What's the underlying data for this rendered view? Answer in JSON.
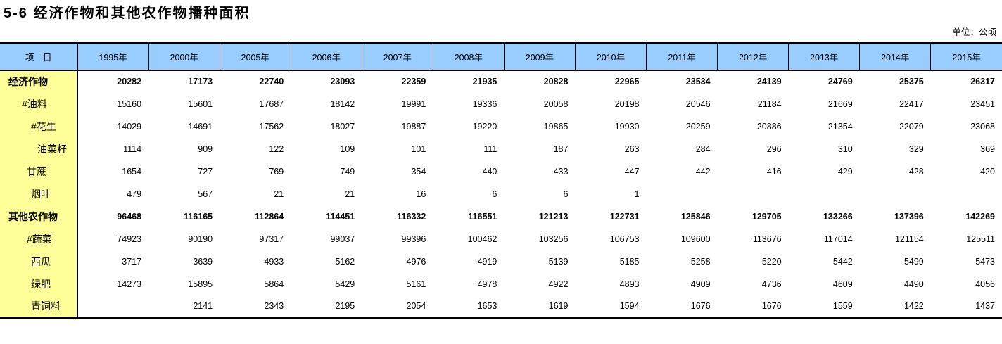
{
  "page": {
    "title": "5-6 经济作物和其他农作物播种面积",
    "unit_label": "单位：公顷"
  },
  "colors": {
    "header_bg": "#99CCFF",
    "label_col_bg": "#FFFF99",
    "border": "#000000"
  },
  "table": {
    "header": {
      "item_label": "项　目",
      "years": [
        "1995年",
        "2000年",
        "2005年",
        "2006年",
        "2007年",
        "2008年",
        "2009年",
        "2010年",
        "2011年",
        "2012年",
        "2013年",
        "2014年",
        "2015年"
      ]
    },
    "rows": [
      {
        "label": "经济作物",
        "bold": true,
        "indent": 0,
        "values": [
          "20282",
          "17173",
          "22740",
          "23093",
          "22359",
          "21935",
          "20828",
          "22965",
          "23534",
          "24139",
          "24769",
          "25375",
          "26317"
        ]
      },
      {
        "label": "#油料",
        "bold": false,
        "indent": 1,
        "values": [
          "15160",
          "15601",
          "17687",
          "18142",
          "19991",
          "19336",
          "20058",
          "20198",
          "20546",
          "21184",
          "21669",
          "22417",
          "23451"
        ]
      },
      {
        "label": "#花生",
        "bold": false,
        "indent": 3,
        "values": [
          "14029",
          "14691",
          "17562",
          "18027",
          "19887",
          "19220",
          "19865",
          "19930",
          "20259",
          "20886",
          "21354",
          "22079",
          "23068"
        ]
      },
      {
        "label": "油菜籽",
        "bold": false,
        "indent": 4,
        "values": [
          "1114",
          "909",
          "122",
          "109",
          "101",
          "111",
          "187",
          "263",
          "284",
          "296",
          "310",
          "329",
          "369"
        ]
      },
      {
        "label": "甘蔗",
        "bold": false,
        "indent": 2,
        "values": [
          "1654",
          "727",
          "769",
          "749",
          "354",
          "440",
          "433",
          "447",
          "442",
          "416",
          "429",
          "428",
          "420"
        ]
      },
      {
        "label": "烟叶",
        "bold": false,
        "indent": 3,
        "values": [
          "479",
          "567",
          "21",
          "21",
          "16",
          "6",
          "6",
          "1",
          "",
          "",
          "",
          "",
          ""
        ]
      },
      {
        "label": "其他农作物",
        "bold": true,
        "indent": 0,
        "values": [
          "96468",
          "116165",
          "112864",
          "114451",
          "116332",
          "116551",
          "121213",
          "122731",
          "125846",
          "129705",
          "133266",
          "137396",
          "142269"
        ]
      },
      {
        "label": "#蔬菜",
        "bold": false,
        "indent": 2,
        "values": [
          "74923",
          "90190",
          "97317",
          "99037",
          "99396",
          "100462",
          "103256",
          "106753",
          "109600",
          "113676",
          "117014",
          "121154",
          "125511"
        ]
      },
      {
        "label": "西瓜",
        "bold": false,
        "indent": 3,
        "values": [
          "3717",
          "3639",
          "4933",
          "5162",
          "4976",
          "4919",
          "5139",
          "5185",
          "5258",
          "5220",
          "5442",
          "5499",
          "5473"
        ]
      },
      {
        "label": "绿肥",
        "bold": false,
        "indent": 3,
        "values": [
          "14273",
          "15895",
          "5864",
          "5429",
          "5161",
          "4978",
          "4922",
          "4893",
          "4909",
          "4736",
          "4609",
          "4490",
          "4056"
        ]
      },
      {
        "label": "青饲料",
        "bold": false,
        "indent": 3,
        "values": [
          "",
          "2141",
          "2343",
          "2195",
          "2054",
          "1653",
          "1619",
          "1594",
          "1676",
          "1676",
          "1559",
          "1422",
          "1437"
        ]
      }
    ]
  }
}
